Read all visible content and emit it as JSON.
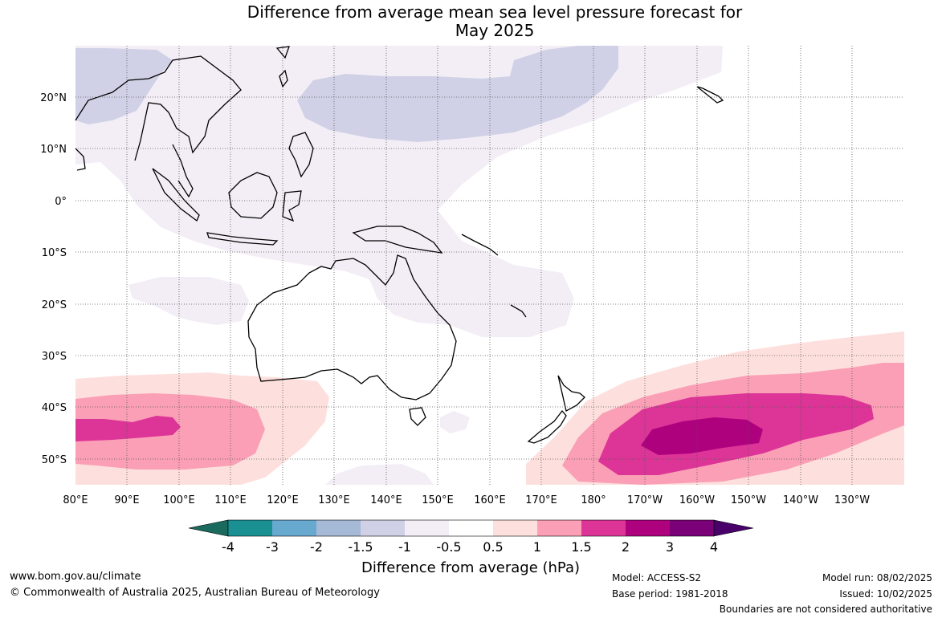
{
  "title": {
    "line1": "Difference from average mean sea level pressure forecast for",
    "line2": "May 2025"
  },
  "map": {
    "lon_labels": [
      "80°E",
      "90°E",
      "100°E",
      "110°E",
      "120°E",
      "130°E",
      "140°E",
      "150°E",
      "160°E",
      "170°E",
      "180°",
      "170°W",
      "160°W",
      "150°W",
      "140°W",
      "130°W"
    ],
    "lat_labels": [
      "20°N",
      "10°N",
      "0°",
      "10°S",
      "20°S",
      "30°S",
      "40°S",
      "50°S"
    ]
  },
  "colorbar": {
    "title": "Difference from average (hPa)",
    "ticks": [
      "-4",
      "-3",
      "-2",
      "-1.5",
      "-1",
      "-0.5",
      "0.5",
      "1",
      "1.5",
      "2",
      "3",
      "4"
    ],
    "colors": [
      "#1a6b5d",
      "#1a9093",
      "#67a9cf",
      "#a6b9d6",
      "#d0d1e6",
      "#f3eef6",
      "#ffffff",
      "#fde0dd",
      "#fa9fb5",
      "#dd3497",
      "#ae017e",
      "#7a0177",
      "#49006a"
    ]
  },
  "footer": {
    "url": "www.bom.gov.au/climate",
    "copyright": "© Commonwealth of Australia 2025, Australian Bureau of Meteorology",
    "model": "Model: ACCESS-S2",
    "base_period": "Base period: 1981-2018",
    "model_run": "Model run: 08/02/2025",
    "issued": "Issued: 10/02/2025",
    "disclaimer": "Boundaries are not considered authoritative"
  }
}
